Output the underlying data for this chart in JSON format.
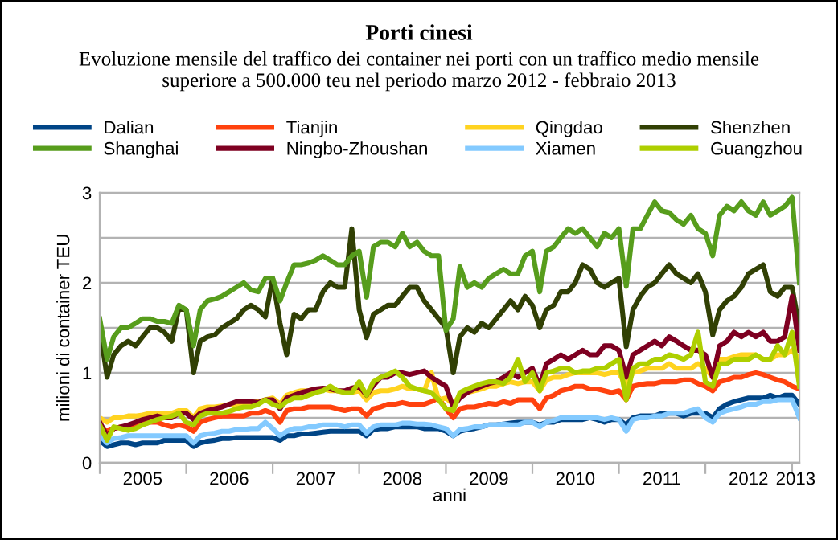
{
  "chart_data": {
    "type": "line",
    "title": "Porti cinesi",
    "subtitle": "Evoluzione mensile del traffico dei container nei porti con un traffico medio mensile\nsuperiore a 500.000 teu nel periodo marzo 2012 - febbraio 2013",
    "xlabel": "anni",
    "ylabel": "milioni di container TEU",
    "x": [
      "2005-01",
      "2005-02",
      "2005-03",
      "2005-04",
      "2005-05",
      "2005-06",
      "2005-07",
      "2005-08",
      "2005-09",
      "2005-10",
      "2005-11",
      "2005-12",
      "2006-01",
      "2006-02",
      "2006-03",
      "2006-04",
      "2006-05",
      "2006-06",
      "2006-07",
      "2006-08",
      "2006-09",
      "2006-10",
      "2006-11",
      "2006-12",
      "2007-01",
      "2007-02",
      "2007-03",
      "2007-04",
      "2007-05",
      "2007-06",
      "2007-07",
      "2007-08",
      "2007-09",
      "2007-10",
      "2007-11",
      "2007-12",
      "2008-01",
      "2008-02",
      "2008-03",
      "2008-04",
      "2008-05",
      "2008-06",
      "2008-07",
      "2008-08",
      "2008-09",
      "2008-10",
      "2008-11",
      "2008-12",
      "2009-01",
      "2009-02",
      "2009-03",
      "2009-04",
      "2009-05",
      "2009-06",
      "2009-07",
      "2009-08",
      "2009-09",
      "2009-10",
      "2009-11",
      "2009-12",
      "2010-01",
      "2010-02",
      "2010-03",
      "2010-04",
      "2010-05",
      "2010-06",
      "2010-07",
      "2010-08",
      "2010-09",
      "2010-10",
      "2010-11",
      "2010-12",
      "2011-01",
      "2011-02",
      "2011-03",
      "2011-04",
      "2011-05",
      "2011-06",
      "2011-07",
      "2011-08",
      "2011-09",
      "2011-10",
      "2011-11",
      "2011-12",
      "2012-01",
      "2012-02",
      "2012-03",
      "2012-04",
      "2012-05",
      "2012-06",
      "2012-07",
      "2012-08",
      "2012-09",
      "2012-10",
      "2012-11",
      "2012-12",
      "2013-01",
      "2013-02"
    ],
    "series": [
      {
        "name": "Dalian",
        "color": "#004586",
        "values": [
          0.25,
          0.18,
          0.2,
          0.22,
          0.22,
          0.2,
          0.22,
          0.22,
          0.22,
          0.25,
          0.25,
          0.25,
          0.25,
          0.18,
          0.22,
          0.24,
          0.25,
          0.27,
          0.27,
          0.28,
          0.28,
          0.28,
          0.28,
          0.28,
          0.28,
          0.25,
          0.3,
          0.3,
          0.32,
          0.32,
          0.33,
          0.34,
          0.35,
          0.35,
          0.35,
          0.35,
          0.35,
          0.3,
          0.37,
          0.38,
          0.38,
          0.4,
          0.4,
          0.4,
          0.4,
          0.38,
          0.38,
          0.38,
          0.35,
          0.3,
          0.35,
          0.37,
          0.38,
          0.4,
          0.42,
          0.42,
          0.43,
          0.44,
          0.45,
          0.45,
          0.45,
          0.42,
          0.45,
          0.45,
          0.48,
          0.48,
          0.48,
          0.48,
          0.5,
          0.48,
          0.45,
          0.48,
          0.48,
          0.42,
          0.5,
          0.52,
          0.52,
          0.52,
          0.55,
          0.55,
          0.55,
          0.52,
          0.55,
          0.55,
          0.55,
          0.5,
          0.6,
          0.65,
          0.68,
          0.7,
          0.72,
          0.72,
          0.72,
          0.75,
          0.72,
          0.75,
          0.75,
          0.65
        ]
      },
      {
        "name": "Tianjin",
        "color": "#ff420e",
        "values": [
          0.38,
          0.35,
          0.38,
          0.4,
          0.4,
          0.42,
          0.43,
          0.45,
          0.45,
          0.42,
          0.4,
          0.42,
          0.4,
          0.35,
          0.45,
          0.48,
          0.5,
          0.52,
          0.52,
          0.52,
          0.52,
          0.55,
          0.55,
          0.58,
          0.55,
          0.45,
          0.58,
          0.6,
          0.6,
          0.62,
          0.62,
          0.62,
          0.62,
          0.6,
          0.58,
          0.6,
          0.6,
          0.52,
          0.6,
          0.62,
          0.65,
          0.65,
          0.67,
          0.65,
          0.65,
          0.65,
          0.68,
          0.72,
          0.6,
          0.5,
          0.6,
          0.62,
          0.62,
          0.64,
          0.66,
          0.65,
          0.68,
          0.66,
          0.7,
          0.7,
          0.7,
          0.6,
          0.72,
          0.75,
          0.8,
          0.82,
          0.85,
          0.85,
          0.82,
          0.82,
          0.8,
          0.78,
          0.8,
          0.7,
          0.85,
          0.87,
          0.88,
          0.88,
          0.9,
          0.9,
          0.9,
          0.92,
          0.92,
          0.88,
          0.85,
          0.8,
          0.9,
          0.92,
          0.95,
          0.95,
          0.98,
          1.0,
          0.98,
          0.95,
          0.92,
          0.9,
          0.85,
          0.82
        ]
      },
      {
        "name": "Qingdao",
        "color": "#ffd320",
        "values": [
          0.5,
          0.45,
          0.5,
          0.5,
          0.52,
          0.52,
          0.53,
          0.55,
          0.55,
          0.55,
          0.55,
          0.58,
          0.58,
          0.5,
          0.6,
          0.62,
          0.62,
          0.63,
          0.65,
          0.65,
          0.67,
          0.67,
          0.68,
          0.7,
          0.72,
          0.65,
          0.75,
          0.78,
          0.8,
          0.8,
          0.82,
          0.82,
          0.8,
          0.8,
          0.78,
          0.78,
          0.8,
          0.7,
          0.78,
          0.8,
          0.8,
          0.82,
          0.85,
          0.82,
          0.82,
          0.8,
          1.0,
          0.7,
          0.72,
          0.65,
          0.75,
          0.78,
          0.8,
          0.82,
          0.85,
          0.85,
          0.88,
          0.9,
          0.88,
          0.9,
          0.9,
          0.8,
          0.92,
          0.95,
          0.95,
          0.98,
          1.0,
          1.0,
          1.0,
          1.0,
          0.98,
          1.0,
          1.0,
          0.85,
          1.0,
          1.02,
          1.05,
          1.05,
          1.05,
          1.1,
          1.05,
          1.05,
          1.05,
          1.1,
          1.05,
          0.95,
          1.15,
          1.15,
          1.18,
          1.2,
          1.2,
          1.2,
          1.15,
          1.15,
          1.2,
          1.2,
          1.25,
          1.15
        ]
      },
      {
        "name": "Shenzhen",
        "color": "#314004",
        "values": [
          1.5,
          0.95,
          1.2,
          1.3,
          1.35,
          1.3,
          1.4,
          1.5,
          1.5,
          1.45,
          1.35,
          1.72,
          1.7,
          1.0,
          1.35,
          1.4,
          1.42,
          1.5,
          1.55,
          1.6,
          1.7,
          1.75,
          1.7,
          1.62,
          2.05,
          1.55,
          1.2,
          1.65,
          1.6,
          1.7,
          1.7,
          1.9,
          2.0,
          1.95,
          1.95,
          2.6,
          1.7,
          1.39,
          1.65,
          1.7,
          1.75,
          1.75,
          1.85,
          1.95,
          1.95,
          1.8,
          1.7,
          1.6,
          1.5,
          1.0,
          1.4,
          1.5,
          1.45,
          1.55,
          1.5,
          1.6,
          1.7,
          1.8,
          1.7,
          1.85,
          1.75,
          1.5,
          1.7,
          1.75,
          1.9,
          1.9,
          2.0,
          2.2,
          2.15,
          2.0,
          1.95,
          2.0,
          2.05,
          1.29,
          1.7,
          1.85,
          1.95,
          2.0,
          2.1,
          2.2,
          2.1,
          2.05,
          2.0,
          2.1,
          1.9,
          1.42,
          1.7,
          1.8,
          1.85,
          1.95,
          2.1,
          2.15,
          2.2,
          1.9,
          1.85,
          1.95,
          1.95,
          1.5
        ]
      },
      {
        "name": "Shanghai",
        "color": "#579d1c",
        "values": [
          1.6,
          1.15,
          1.4,
          1.5,
          1.5,
          1.55,
          1.6,
          1.6,
          1.57,
          1.57,
          1.55,
          1.75,
          1.7,
          1.3,
          1.7,
          1.8,
          1.82,
          1.85,
          1.9,
          1.95,
          2.0,
          1.92,
          1.9,
          2.05,
          2.05,
          1.8,
          2.0,
          2.2,
          2.2,
          2.22,
          2.25,
          2.3,
          2.25,
          2.2,
          2.2,
          2.3,
          2.35,
          1.84,
          2.4,
          2.45,
          2.45,
          2.4,
          2.55,
          2.4,
          2.45,
          2.35,
          2.3,
          2.3,
          1.47,
          1.6,
          2.18,
          1.95,
          2.0,
          1.95,
          2.05,
          2.1,
          2.15,
          2.1,
          2.1,
          2.3,
          2.35,
          1.9,
          2.35,
          2.4,
          2.5,
          2.6,
          2.55,
          2.6,
          2.5,
          2.4,
          2.55,
          2.5,
          2.6,
          1.96,
          2.6,
          2.6,
          2.75,
          2.9,
          2.8,
          2.78,
          2.7,
          2.65,
          2.75,
          2.6,
          2.55,
          2.3,
          2.75,
          2.85,
          2.8,
          2.9,
          2.8,
          2.75,
          2.9,
          2.75,
          2.8,
          2.85,
          2.95,
          2.0
        ]
      },
      {
        "name": "Ningbo-Zhoushan",
        "color": "#7e0021",
        "values": [
          0.45,
          0.3,
          0.38,
          0.4,
          0.42,
          0.45,
          0.48,
          0.5,
          0.52,
          0.5,
          0.5,
          0.55,
          0.55,
          0.48,
          0.55,
          0.58,
          0.6,
          0.62,
          0.65,
          0.68,
          0.68,
          0.68,
          0.67,
          0.7,
          0.7,
          0.6,
          0.72,
          0.75,
          0.78,
          0.8,
          0.82,
          0.83,
          0.82,
          0.8,
          0.8,
          0.83,
          0.85,
          0.75,
          0.86,
          0.95,
          0.95,
          1.0,
          1.0,
          0.98,
          1.0,
          1.02,
          0.95,
          0.9,
          0.85,
          0.62,
          0.72,
          0.78,
          0.82,
          0.85,
          0.88,
          0.9,
          0.95,
          1.0,
          0.95,
          1.0,
          1.05,
          0.85,
          1.1,
          1.15,
          1.2,
          1.15,
          1.2,
          1.25,
          1.2,
          1.2,
          1.3,
          1.3,
          1.25,
          0.95,
          1.2,
          1.25,
          1.3,
          1.35,
          1.3,
          1.4,
          1.35,
          1.3,
          1.25,
          1.25,
          1.2,
          0.95,
          1.3,
          1.35,
          1.45,
          1.4,
          1.45,
          1.4,
          1.45,
          1.35,
          1.35,
          1.4,
          1.85,
          1.25
        ]
      },
      {
        "name": "Xiamen",
        "color": "#83caff",
        "values": [
          0.3,
          0.22,
          0.27,
          0.28,
          0.3,
          0.3,
          0.3,
          0.3,
          0.3,
          0.3,
          0.3,
          0.3,
          0.3,
          0.22,
          0.3,
          0.32,
          0.33,
          0.35,
          0.35,
          0.37,
          0.37,
          0.38,
          0.38,
          0.45,
          0.38,
          0.3,
          0.35,
          0.38,
          0.38,
          0.4,
          0.4,
          0.42,
          0.42,
          0.42,
          0.4,
          0.42,
          0.42,
          0.33,
          0.4,
          0.42,
          0.42,
          0.42,
          0.44,
          0.44,
          0.43,
          0.43,
          0.42,
          0.4,
          0.38,
          0.3,
          0.37,
          0.38,
          0.4,
          0.4,
          0.42,
          0.42,
          0.43,
          0.42,
          0.42,
          0.45,
          0.45,
          0.4,
          0.45,
          0.47,
          0.5,
          0.5,
          0.5,
          0.5,
          0.5,
          0.5,
          0.48,
          0.5,
          0.48,
          0.35,
          0.48,
          0.5,
          0.5,
          0.52,
          0.52,
          0.55,
          0.55,
          0.55,
          0.58,
          0.6,
          0.5,
          0.45,
          0.55,
          0.58,
          0.6,
          0.62,
          0.65,
          0.65,
          0.68,
          0.68,
          0.7,
          0.7,
          0.7,
          0.5
        ]
      },
      {
        "name": "Guangzhou",
        "color": "#aecf00",
        "values": [
          0.42,
          0.25,
          0.4,
          0.38,
          0.36,
          0.38,
          0.42,
          0.45,
          0.48,
          0.5,
          0.52,
          0.55,
          0.45,
          0.42,
          0.52,
          0.55,
          0.55,
          0.55,
          0.57,
          0.6,
          0.62,
          0.62,
          0.65,
          0.7,
          0.65,
          0.62,
          0.68,
          0.72,
          0.72,
          0.75,
          0.78,
          0.8,
          0.85,
          0.8,
          0.78,
          0.78,
          0.9,
          0.75,
          0.9,
          0.95,
          0.98,
          1.02,
          0.95,
          0.85,
          0.82,
          0.8,
          0.78,
          0.7,
          0.6,
          0.58,
          0.78,
          0.82,
          0.85,
          0.88,
          0.9,
          0.9,
          0.88,
          0.95,
          1.15,
          0.9,
          1.0,
          0.8,
          1.0,
          1.02,
          1.05,
          1.05,
          1.0,
          1.02,
          1.02,
          1.05,
          1.05,
          1.1,
          1.15,
          0.7,
          1.05,
          1.1,
          1.1,
          1.15,
          1.15,
          1.2,
          1.18,
          1.15,
          1.2,
          1.45,
          0.9,
          0.85,
          1.1,
          1.1,
          1.15,
          1.15,
          1.15,
          1.2,
          1.15,
          1.15,
          1.3,
          1.2,
          1.45,
          0.85
        ]
      }
    ],
    "xlim": [
      "2005-01",
      "2013-02"
    ],
    "xticks": [
      {
        "value": "2005-01",
        "label": null
      },
      {
        "value": "2006-01",
        "label": null
      },
      {
        "value": "2007-01",
        "label": null
      },
      {
        "value": "2008-01",
        "label": null
      },
      {
        "value": "2009-01",
        "label": null
      },
      {
        "value": "2010-01",
        "label": null
      },
      {
        "value": "2011-01",
        "label": null
      },
      {
        "value": "2012-01",
        "label": null
      },
      {
        "value": "2013-01",
        "label": null
      },
      {
        "value": "2005-07",
        "label": "2005"
      },
      {
        "value": "2006-07",
        "label": "2006"
      },
      {
        "value": "2007-07",
        "label": "2007"
      },
      {
        "value": "2008-07",
        "label": "2008"
      },
      {
        "value": "2009-07",
        "label": "2009"
      },
      {
        "value": "2010-07",
        "label": "2010"
      },
      {
        "value": "2011-07",
        "label": "2011"
      },
      {
        "value": "2012-07",
        "label": "2012"
      },
      {
        "value": "2013-01-16",
        "label": "2013"
      }
    ],
    "ylim": [
      0,
      3
    ],
    "yticks": [
      0,
      {
        "value": 0.5,
        "label": null
      },
      1,
      {
        "value": 1.5,
        "label": null
      },
      2,
      {
        "value": 2.5,
        "label": null
      },
      3
    ],
    "grid": "y",
    "legend": "top",
    "marker": "none",
    "line_style": "solid"
  }
}
